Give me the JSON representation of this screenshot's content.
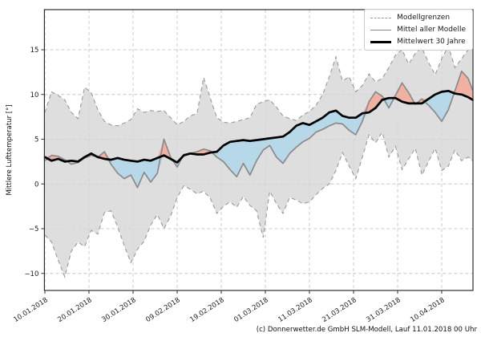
{
  "figure": {
    "y_axis_label": "Mittlere Lufttemperatur [°]",
    "footer": "(c) Donnerwetter.de GmbH SLM-Modell, Lauf 11.01.2018 00 Uhr",
    "legend": [
      {
        "label": "Modellgrenzen",
        "style": "dashed-gray"
      },
      {
        "label": "Mittel aller Modelle",
        "style": "solid-gray"
      },
      {
        "label": "Mittelwert 30 Jahre",
        "style": "solid-black-thick"
      }
    ]
  },
  "chart_data": {
    "type": "line",
    "title": "",
    "xlabel": "",
    "ylabel": "Mittlere Lufttemperatur [°]",
    "x_start_date": "10.01.2018",
    "x_range_days": [
      0,
      97
    ],
    "ylim": [
      -11.9,
      19.5
    ],
    "grid": true,
    "legend_position": "top-right",
    "x_tick_days": [
      0,
      10,
      20,
      30,
      40,
      50,
      60,
      70,
      80,
      90
    ],
    "x_tick_labels": [
      "10.01.2018",
      "20.01.2018",
      "30.01.2018",
      "09.02.2018",
      "19.02.2018",
      "01.03.2018",
      "11.03.2018",
      "21.03.2018",
      "31.03.2018",
      "10.04.2018"
    ],
    "y_ticks": [
      15,
      10,
      5,
      0,
      -5,
      -10
    ],
    "y_tick_labels": [
      "15",
      "10",
      "5",
      "0",
      "−5",
      "−10"
    ],
    "days": [
      0,
      1.5,
      3,
      4.5,
      6,
      7.5,
      9,
      10.5,
      12,
      13.5,
      15,
      16.5,
      18,
      19.5,
      21,
      22.5,
      24,
      25.5,
      27,
      28.5,
      30,
      31.5,
      33,
      34.5,
      36,
      37.5,
      39,
      40.5,
      42,
      43.5,
      45,
      46.5,
      48,
      49.5,
      51,
      52.5,
      54,
      55.5,
      57,
      58.5,
      60,
      61.5,
      63,
      64.5,
      66,
      67.5,
      69,
      70.5,
      72,
      73.5,
      75,
      76.5,
      78,
      79.5,
      81,
      82.5,
      84,
      85.5,
      87,
      88.5,
      90,
      91.5,
      93,
      94.5,
      96,
      97
    ],
    "series": [
      {
        "id": "upper",
        "name": "Modellgrenzen (obere Grenze)",
        "style": "dashed",
        "values": [
          8,
          10.3,
          9.9,
          9.4,
          8,
          7.3,
          10.8,
          10.2,
          8.3,
          7,
          6.6,
          6.5,
          6.8,
          7.2,
          8.4,
          8,
          8.2,
          8.1,
          8.2,
          7.4,
          6.6,
          7,
          7.6,
          7.9,
          11.9,
          9.6,
          7.4,
          6.9,
          6.8,
          7,
          7.2,
          7.4,
          8.9,
          9.2,
          9.4,
          8.6,
          7.6,
          7.3,
          7.1,
          7.7,
          8.1,
          8.8,
          10,
          12,
          14.2,
          11.5,
          12,
          10.3,
          11,
          12.3,
          11.4,
          11.8,
          13,
          14.4,
          15,
          13.4,
          14.6,
          15.2,
          13.6,
          12.2,
          14,
          15.4,
          13,
          14,
          15,
          15.2
        ]
      },
      {
        "id": "lower",
        "name": "Modellgrenzen (untere Grenze)",
        "style": "dashed",
        "values": [
          -5.7,
          -6.5,
          -8.5,
          -10.4,
          -7.5,
          -6.5,
          -7,
          -5.2,
          -5.6,
          -3.2,
          -3,
          -4.8,
          -6.9,
          -8.8,
          -7.3,
          -6.4,
          -4.6,
          -3.4,
          -5,
          -3.6,
          -1.5,
          -0.2,
          -0.6,
          -1.1,
          -0.8,
          -1.6,
          -3.3,
          -2.5,
          -2,
          -2.6,
          -1.4,
          -2.4,
          -3,
          -6,
          -0.8,
          -2.2,
          -3.3,
          -1.5,
          -1.8,
          -2.2,
          -2,
          -1.2,
          -0.5,
          0,
          1.5,
          3.5,
          2,
          0.6,
          3,
          5.5,
          4.6,
          5.8,
          3,
          4.2,
          1.6,
          2.8,
          4,
          1,
          2.5,
          4,
          1.5,
          2,
          3.8,
          2.6,
          3,
          2.6
        ]
      },
      {
        "id": "mean",
        "name": "Mittel aller Modelle",
        "style": "solid",
        "values": [
          2.6,
          3.2,
          3.1,
          2.7,
          2.2,
          2.4,
          2.9,
          3.2,
          3,
          3.6,
          2.2,
          1.2,
          0.6,
          1,
          -0.4,
          1.3,
          0.2,
          1.2,
          5,
          3,
          1.9,
          3.3,
          3.4,
          3.6,
          3.9,
          3.7,
          3,
          2.5,
          1.6,
          0.8,
          2.3,
          1,
          2.6,
          3.8,
          4.3,
          3,
          2.3,
          3.4,
          4.1,
          4.7,
          5.1,
          5.8,
          6.1,
          6.5,
          6.8,
          6.7,
          6,
          5.5,
          7,
          9.2,
          10.3,
          9.8,
          8.5,
          9.9,
          11.3,
          10.2,
          8.9,
          9.5,
          8.8,
          8,
          7,
          8.3,
          10.4,
          12.6,
          11.8,
          10.5
        ]
      },
      {
        "id": "climate",
        "name": "Mittelwert 30 Jahre",
        "style": "solid-thick",
        "values": [
          3,
          2.6,
          2.8,
          2.5,
          2.6,
          2.5,
          3,
          3.4,
          3,
          2.8,
          2.7,
          2.9,
          2.7,
          2.6,
          2.5,
          2.7,
          2.6,
          2.9,
          3.2,
          2.8,
          2.4,
          3.2,
          3.4,
          3.3,
          3.3,
          3.5,
          3.6,
          4.3,
          4.7,
          4.8,
          4.9,
          4.8,
          4.9,
          5,
          5.1,
          5.2,
          5.3,
          5.8,
          6.5,
          6.8,
          6.6,
          7,
          7.4,
          8,
          8.2,
          7.6,
          7.4,
          7.4,
          7.9,
          8,
          8.5,
          9.4,
          9.6,
          9.6,
          9.2,
          9,
          9,
          9,
          9.5,
          10,
          10.3,
          10.4,
          10.1,
          10,
          9.7,
          9.4
        ]
      }
    ],
    "colors": {
      "envelope_fill": "#dedede",
      "envelope_border": "#999999",
      "fill_above_climate": "#f0b0a2",
      "fill_below_climate": "#b7d8e9",
      "mean_line": "#8a8a8a",
      "climate_line": "#000000",
      "grid": "#cccccc",
      "spine": "#2e2e2e",
      "tick_text": "#1a1a1a"
    }
  }
}
